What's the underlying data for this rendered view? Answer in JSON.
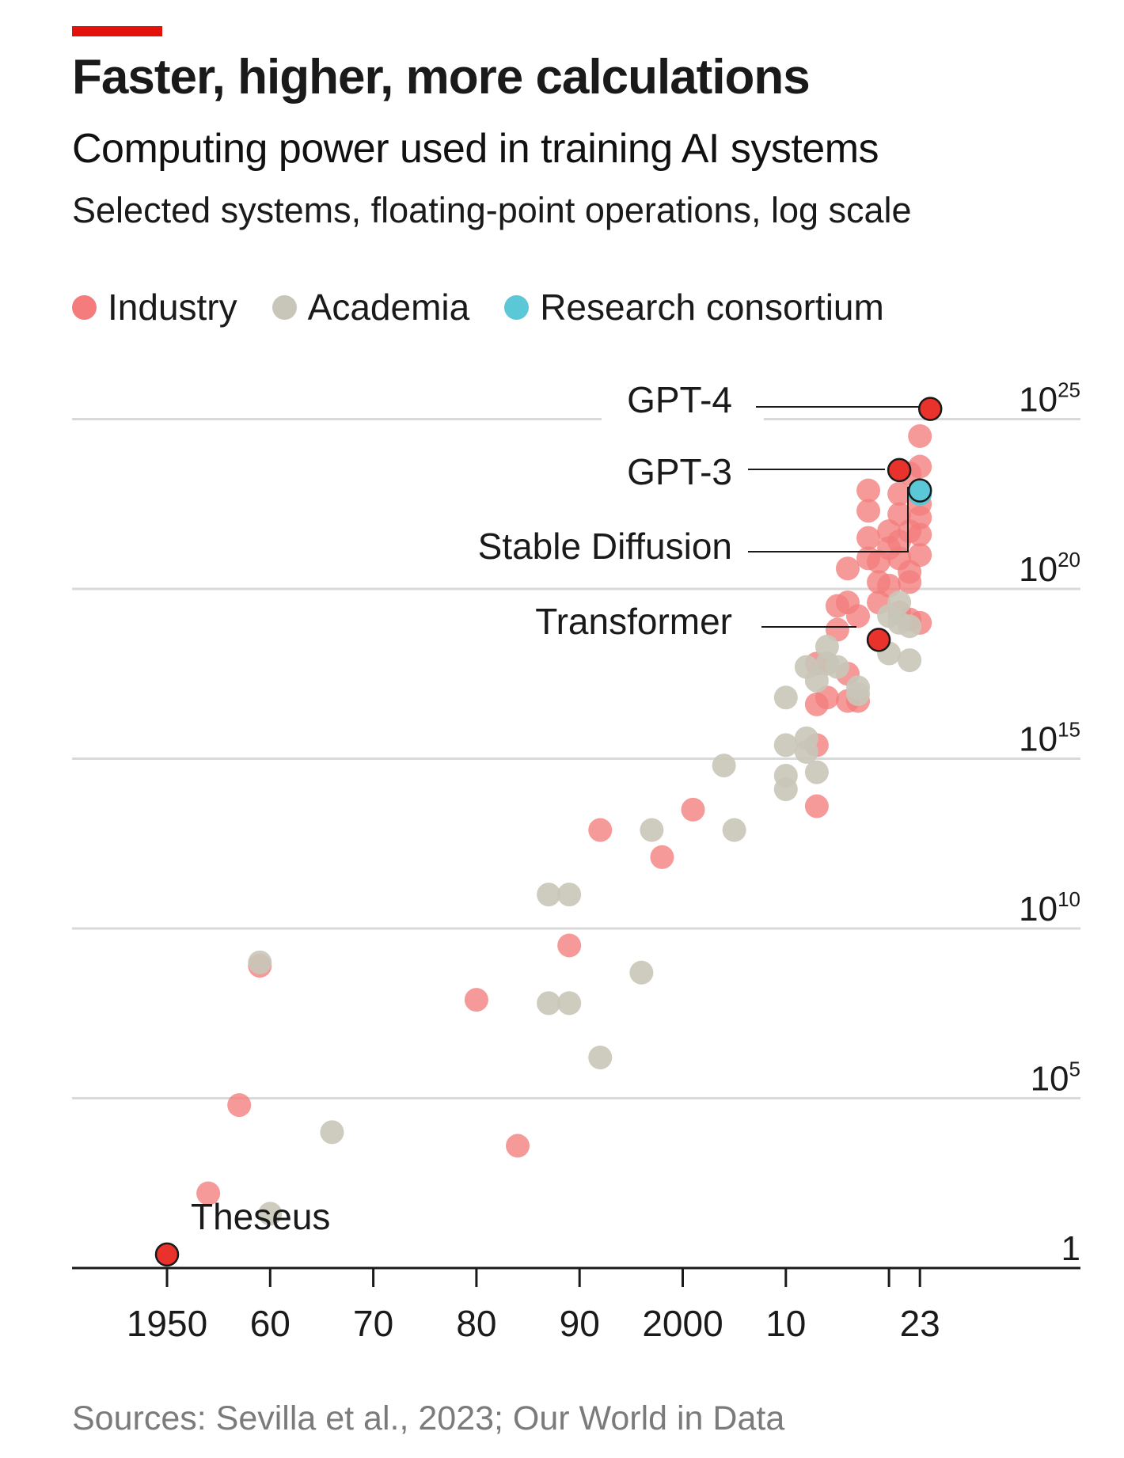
{
  "header": {
    "title": "Faster, higher, more calculations",
    "subtitle": "Computing power used in training AI systems",
    "description": "Selected systems, floating-point operations, log scale"
  },
  "legend": {
    "items": [
      {
        "label": "Industry",
        "color": "#f47c7c"
      },
      {
        "label": "Academia",
        "color": "#c8c6b8"
      },
      {
        "label": "Research consortium",
        "color": "#5bc8d8"
      }
    ]
  },
  "source": "Sources: Sevilla et al., 2023; Our World in Data",
  "colors": {
    "industry": "#f47c7c",
    "academia": "#c8c6b8",
    "consortium": "#5bc8d8",
    "highlight": "#e8322b",
    "accent": "#e3120b",
    "gridline": "#d9d9d9"
  },
  "chart_data": {
    "type": "scatter",
    "title": "Faster, higher, more calculations",
    "xlabel": "",
    "ylabel": "",
    "y_scale": "log",
    "xlim": [
      1941,
      2038
    ],
    "ylim_exponent": [
      0,
      25
    ],
    "grid": true,
    "legend_position": "top-left",
    "x_ticks": [
      {
        "value": 1950,
        "label": "1950"
      },
      {
        "value": 1960,
        "label": "60"
      },
      {
        "value": 1970,
        "label": "70"
      },
      {
        "value": 1980,
        "label": "80"
      },
      {
        "value": 1990,
        "label": "90"
      },
      {
        "value": 2000,
        "label": "2000"
      },
      {
        "value": 2010,
        "label": "10"
      },
      {
        "value": 2020,
        "label": ""
      },
      {
        "value": 2023,
        "label": "23"
      }
    ],
    "y_ticks": [
      {
        "exponent": 25,
        "base": "10",
        "sup": "25"
      },
      {
        "exponent": 20,
        "base": "10",
        "sup": "20"
      },
      {
        "exponent": 15,
        "base": "10",
        "sup": "15"
      },
      {
        "exponent": 10,
        "base": "10",
        "sup": "10"
      },
      {
        "exponent": 5,
        "base": "10",
        "sup": "5"
      },
      {
        "exponent": 0,
        "base": "1",
        "sup": ""
      }
    ],
    "series": [
      {
        "name": "Industry",
        "color": "#f47c7c",
        "points": [
          [
            1954,
            2.2
          ],
          [
            1957,
            4.8
          ],
          [
            1959,
            8.9
          ],
          [
            1980,
            7.9
          ],
          [
            1984,
            3.6
          ],
          [
            1989,
            9.5
          ],
          [
            1992,
            12.9
          ],
          [
            1998,
            12.1
          ],
          [
            2001,
            13.5
          ],
          [
            2013,
            13.6
          ],
          [
            2013,
            15.4
          ],
          [
            2013,
            16.6
          ],
          [
            2014,
            16.8
          ],
          [
            2016,
            16.7
          ],
          [
            2013,
            17.8
          ],
          [
            2014,
            17.8
          ],
          [
            2015,
            18.8
          ],
          [
            2016,
            17.5
          ],
          [
            2015,
            19.5
          ],
          [
            2016,
            19.6
          ],
          [
            2017,
            19.2
          ],
          [
            2016,
            20.6
          ],
          [
            2018,
            20.9
          ],
          [
            2018,
            21.5
          ],
          [
            2018,
            22.3
          ],
          [
            2018,
            22.9
          ],
          [
            2019,
            19.6
          ],
          [
            2019,
            20.2
          ],
          [
            2019,
            20.8
          ],
          [
            2020,
            20.1
          ],
          [
            2020,
            21.2
          ],
          [
            2020,
            21.7
          ],
          [
            2021,
            20.9
          ],
          [
            2021,
            21.4
          ],
          [
            2021,
            22.2
          ],
          [
            2021,
            22.8
          ],
          [
            2021,
            19.3
          ],
          [
            2022,
            20.5
          ],
          [
            2022,
            20.2
          ],
          [
            2022,
            21.7
          ],
          [
            2022,
            23.4
          ],
          [
            2023,
            22.1
          ],
          [
            2023,
            22.9
          ],
          [
            2023,
            21.0
          ],
          [
            2023,
            21.6
          ],
          [
            2023,
            22.5
          ],
          [
            2023,
            23.6
          ],
          [
            2023,
            24.5
          ],
          [
            2023,
            19.0
          ],
          [
            2022,
            19.1
          ],
          [
            2017,
            16.7
          ]
        ]
      },
      {
        "name": "Academia",
        "color": "#c8c6b8",
        "points": [
          [
            1959,
            9.0
          ],
          [
            1960,
            1.6
          ],
          [
            1966,
            4.0
          ],
          [
            1987,
            7.8
          ],
          [
            1987,
            11.0
          ],
          [
            1989,
            11.0
          ],
          [
            1989,
            7.8
          ],
          [
            1992,
            6.2
          ],
          [
            1996,
            8.7
          ],
          [
            1997,
            12.9
          ],
          [
            2004,
            14.8
          ],
          [
            2005,
            12.9
          ],
          [
            2010,
            16.8
          ],
          [
            2010,
            15.4
          ],
          [
            2010,
            14.5
          ],
          [
            2010,
            14.1
          ],
          [
            2012,
            15.6
          ],
          [
            2012,
            15.2
          ],
          [
            2013,
            14.6
          ],
          [
            2012,
            17.7
          ],
          [
            2013,
            17.3
          ],
          [
            2014,
            18.3
          ],
          [
            2014,
            17.8
          ],
          [
            2015,
            17.7
          ],
          [
            2017,
            17.1
          ],
          [
            2017,
            16.9
          ],
          [
            2020,
            18.1
          ],
          [
            2020,
            19.2
          ],
          [
            2021,
            19.0
          ],
          [
            2021,
            19.6
          ],
          [
            2022,
            18.9
          ],
          [
            2022,
            17.9
          ]
        ]
      },
      {
        "name": "Research consortium",
        "color": "#5bc8d8",
        "points": [
          [
            2023,
            22.8
          ]
        ]
      }
    ],
    "annotations": [
      {
        "label": "GPT-4",
        "x": 2024,
        "exponent": 25.3,
        "category": "industry"
      },
      {
        "label": "GPT-3",
        "x": 2021,
        "exponent": 23.5,
        "category": "industry"
      },
      {
        "label": "Stable Diffusion",
        "x": 2023,
        "exponent": 22.9,
        "category": "consortium"
      },
      {
        "label": "Transformer",
        "x": 2019,
        "exponent": 18.5,
        "category": "industry"
      },
      {
        "label": "Theseus",
        "x": 1950,
        "exponent": 0.4,
        "category": "industry"
      }
    ]
  }
}
